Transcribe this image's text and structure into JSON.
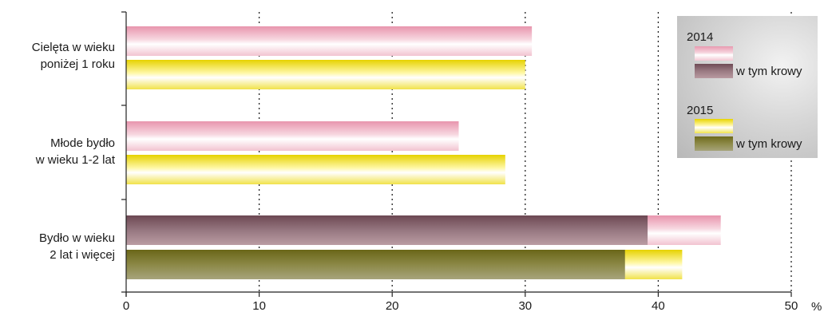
{
  "chart_data": {
    "type": "bar",
    "orientation": "horizontal",
    "categories": [
      "Cielęta w wieku\nponiżej 1 roku",
      "Młode bydło\nw wieku 1-2 lat",
      "Bydło w wieku\n2 lat i więcej"
    ],
    "series": [
      {
        "name": "2014",
        "values": [
          30.5,
          25.0,
          44.7
        ],
        "color": "#f0b8c8"
      },
      {
        "name": "w tym krowy",
        "year": "2014",
        "values": [
          null,
          null,
          39.2
        ],
        "color": "#8a6a72"
      },
      {
        "name": "2015",
        "values": [
          30.0,
          28.5,
          41.8
        ],
        "color": "#f5e44a"
      },
      {
        "name": "w tym krowy",
        "year": "2015",
        "values": [
          null,
          null,
          37.5
        ],
        "color": "#858144"
      }
    ],
    "xlim": [
      0,
      50
    ],
    "xticks": [
      0,
      10,
      20,
      30,
      40,
      50
    ],
    "xunit": "%",
    "grid": "vertical-dotted",
    "legend": {
      "placement": "top-right",
      "groups": [
        {
          "year": "2014",
          "sub": "w tym krowy"
        },
        {
          "year": "2015",
          "sub": "w tym krowy"
        }
      ]
    }
  }
}
